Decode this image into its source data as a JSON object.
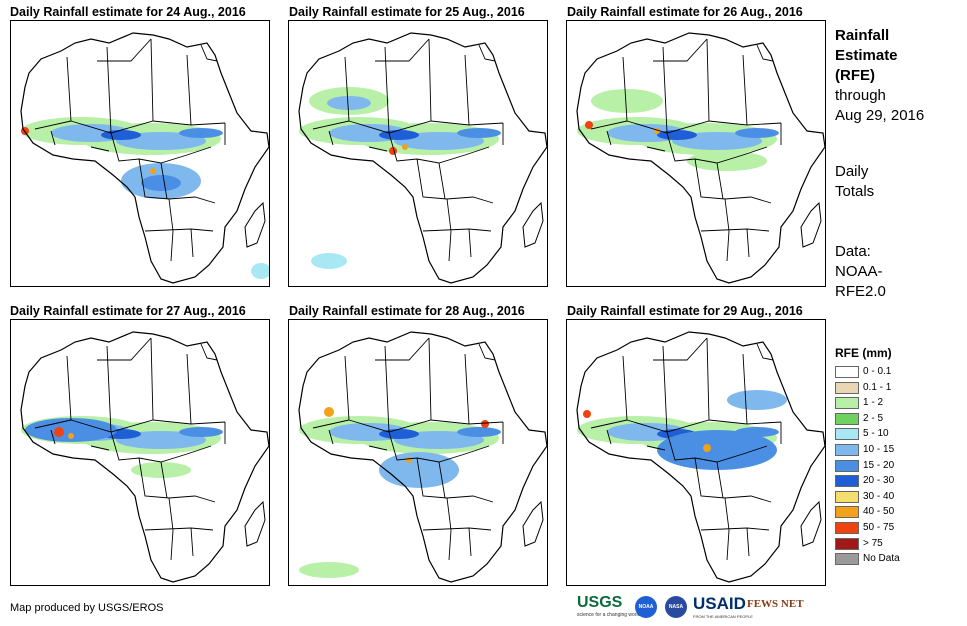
{
  "panels": [
    {
      "title": "Daily Rainfall estimate for 24 Aug., 2016"
    },
    {
      "title": "Daily Rainfall estimate for 25 Aug., 2016"
    },
    {
      "title": "Daily Rainfall estimate for 26 Aug., 2016"
    },
    {
      "title": "Daily Rainfall estimate for 27 Aug., 2016"
    },
    {
      "title": "Daily Rainfall estimate for 28 Aug., 2016"
    },
    {
      "title": "Daily Rainfall estimate for 29 Aug., 2016"
    }
  ],
  "side": {
    "title_line1": "Rainfall",
    "title_line2": "Estimate",
    "title_line3": "(RFE)",
    "through_line1": "through",
    "through_line2": "Aug 29, 2016",
    "period_line1": "Daily",
    "period_line2": "Totals",
    "data_line1": "Data:",
    "data_line2": "NOAA-",
    "data_line3": "RFE2.0"
  },
  "legend": {
    "title": "RFE (mm)",
    "classes": [
      {
        "label": "0 - 0.1",
        "color": "#ffffff"
      },
      {
        "label": "0.1 - 1",
        "color": "#e8d6b4"
      },
      {
        "label": "1 - 2",
        "color": "#b9f0a8"
      },
      {
        "label": "2 - 5",
        "color": "#6fd25f"
      },
      {
        "label": "5 - 10",
        "color": "#a8e8f4"
      },
      {
        "label": "10 - 15",
        "color": "#7fb8ec"
      },
      {
        "label": "15 - 20",
        "color": "#4a8fe3"
      },
      {
        "label": "20 - 30",
        "color": "#1f5fd6"
      },
      {
        "label": "30 - 40",
        "color": "#f4de6e"
      },
      {
        "label": "40 - 50",
        "color": "#f2a11a"
      },
      {
        "label": "50 - 75",
        "color": "#f0410f"
      },
      {
        "label": "> 75",
        "color": "#a01818"
      },
      {
        "label": "No Data",
        "color": "#9a9a9a"
      }
    ]
  },
  "footer": {
    "credit": "Map produced by USGS/EROS",
    "logos": {
      "usgs": "USGS",
      "usgs_tagline": "science for a changing world",
      "noaa": "NOAA",
      "nasa": "NASA",
      "usaid": "USAID",
      "usaid_tagline": "FROM THE AMERICAN PEOPLE",
      "fews": "FEWS NET"
    }
  }
}
